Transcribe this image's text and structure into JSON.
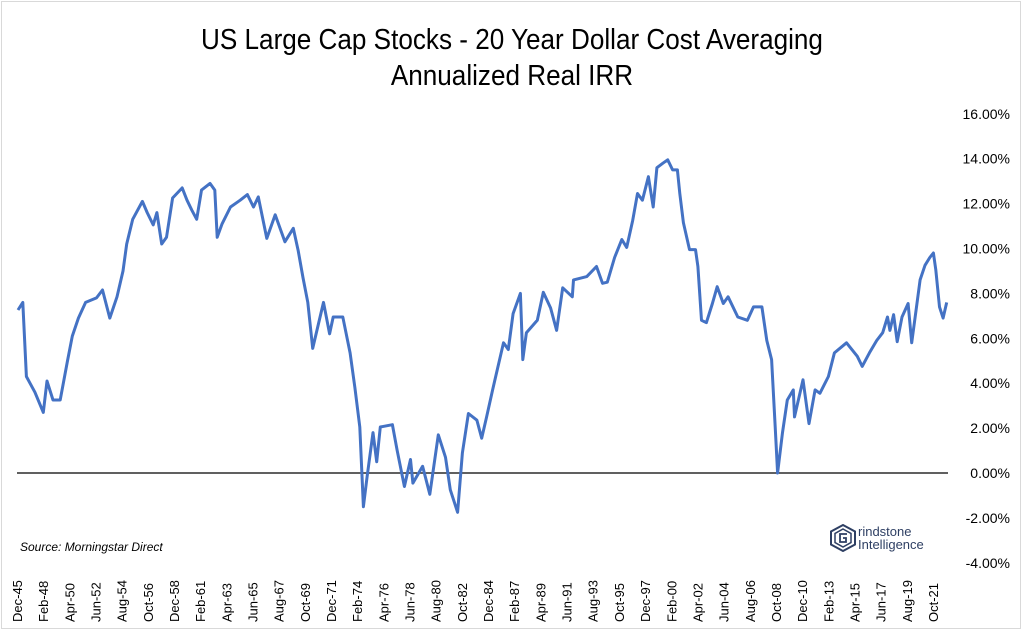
{
  "chart_data": {
    "type": "line",
    "title": "US Large Cap Stocks - 20 Year Dollar Cost Averaging",
    "subtitle": "Annualized Real IRR",
    "xlabel": "",
    "ylabel": "",
    "ylim": [
      -4,
      16
    ],
    "yticks": [
      16,
      14,
      12,
      10,
      8,
      6,
      4,
      2,
      0,
      -2,
      -4
    ],
    "ytick_labels": [
      "16.00%",
      "14.00%",
      "12.00%",
      "10.00%",
      "8.00%",
      "6.00%",
      "4.00%",
      "2.00%",
      "0.00%",
      "-2.00%",
      "-4.00%"
    ],
    "xtick_labels": [
      "Dec-45",
      "Feb-48",
      "Apr-50",
      "Jun-52",
      "Aug-54",
      "Oct-56",
      "Dec-58",
      "Feb-61",
      "Apr-63",
      "Jun-65",
      "Aug-67",
      "Oct-69",
      "Dec-71",
      "Feb-74",
      "Apr-76",
      "Jun-78",
      "Aug-80",
      "Oct-82",
      "Dec-84",
      "Feb-87",
      "Apr-89",
      "Jun-91",
      "Aug-93",
      "Oct-95",
      "Dec-97",
      "Feb-00",
      "Apr-02",
      "Jun-04",
      "Aug-06",
      "Oct-08",
      "Dec-10",
      "Feb-13",
      "Apr-15",
      "Jun-17",
      "Aug-19",
      "Oct-21"
    ],
    "xlim": [
      1945.92,
      2022.9
    ],
    "grid": false,
    "zero_line": true,
    "series": [
      {
        "name": "Annualized Real IRR",
        "color": "#4472c4",
        "x": [
          1946.0,
          1946.4,
          1946.7,
          1947.0,
          1947.4,
          1948.1,
          1948.4,
          1948.9,
          1949.5,
          1950.1,
          1950.5,
          1951.0,
          1951.6,
          1952.5,
          1953.0,
          1953.6,
          1954.2,
          1954.7,
          1955.0,
          1955.5,
          1956.3,
          1956.7,
          1957.2,
          1957.5,
          1957.9,
          1958.3,
          1958.8,
          1959.6,
          1960.0,
          1960.4,
          1960.8,
          1961.2,
          1961.9,
          1962.3,
          1962.5,
          1962.9,
          1963.6,
          1964.4,
          1965.0,
          1965.5,
          1965.9,
          1966.6,
          1967.3,
          1968.1,
          1968.8,
          1969.2,
          1969.6,
          1970.0,
          1970.4,
          1971.3,
          1971.8,
          1972.1,
          1972.9,
          1973.5,
          1973.9,
          1974.3,
          1974.6,
          1974.9,
          1975.4,
          1975.7,
          1976.0,
          1977.0,
          1977.4,
          1978.0,
          1978.5,
          1978.7,
          1979.5,
          1980.1,
          1980.8,
          1981.4,
          1981.8,
          1982.4,
          1982.8,
          1983.3,
          1984.0,
          1984.4,
          1984.8,
          1985.3,
          1986.2,
          1986.6,
          1987.0,
          1987.6,
          1987.8,
          1988.1,
          1989.0,
          1989.5,
          1990.1,
          1990.6,
          1991.1,
          1991.9,
          1992.0,
          1993.1,
          1993.9,
          1994.4,
          1994.8,
          1995.4,
          1996.0,
          1996.4,
          1996.9,
          1997.3,
          1997.7,
          1998.2,
          1998.6,
          1998.9,
          1999.4,
          1999.8,
          2000.2,
          2000.6,
          2000.8,
          2001.1,
          2001.6,
          2002.1,
          2002.3,
          2002.6,
          2003.0,
          2003.5,
          2003.9,
          2004.4,
          2004.8,
          2005.6,
          2006.4,
          2006.9,
          2007.6,
          2008.0,
          2008.4,
          2008.7,
          2008.9,
          2009.3,
          2009.7,
          2010.2,
          2010.3,
          2011.0,
          2011.5,
          2012.0,
          2012.4,
          2013.1,
          2013.6,
          2014.6,
          2015.5,
          2015.9,
          2016.5,
          2017.1,
          2017.6,
          2018.0,
          2018.2,
          2018.5,
          2018.8,
          2019.2,
          2019.7,
          2020.0,
          2020.4,
          2020.7,
          2021.1,
          2021.5,
          2021.8,
          2022.0,
          2022.3,
          2022.6,
          2022.9
        ],
        "y": [
          7.26,
          7.6,
          4.3,
          4.0,
          3.6,
          2.7,
          4.1,
          3.25,
          3.25,
          5.0,
          6.1,
          6.9,
          7.6,
          7.8,
          8.15,
          6.9,
          7.85,
          9.0,
          10.2,
          11.3,
          12.1,
          11.6,
          11.05,
          11.6,
          10.2,
          10.5,
          12.25,
          12.7,
          12.15,
          11.7,
          11.3,
          12.6,
          12.9,
          12.6,
          10.5,
          11.1,
          11.85,
          12.15,
          12.4,
          11.85,
          12.3,
          10.45,
          11.5,
          10.3,
          10.9,
          9.9,
          8.7,
          7.6,
          5.55,
          7.6,
          6.2,
          6.95,
          6.95,
          5.35,
          3.8,
          2.05,
          -1.5,
          -0.2,
          1.8,
          0.5,
          2.05,
          2.15,
          1.0,
          -0.6,
          0.6,
          -0.45,
          0.3,
          -0.95,
          1.7,
          0.7,
          -0.75,
          -1.75,
          0.9,
          2.65,
          2.35,
          1.55,
          2.5,
          3.7,
          5.8,
          5.5,
          7.1,
          8.0,
          5.05,
          6.25,
          6.8,
          8.05,
          7.35,
          6.35,
          8.25,
          7.85,
          8.6,
          8.75,
          9.2,
          8.45,
          8.5,
          9.6,
          10.4,
          10.05,
          11.25,
          12.45,
          12.15,
          13.2,
          11.85,
          13.6,
          13.8,
          13.95,
          13.5,
          13.5,
          12.45,
          11.15,
          9.95,
          9.95,
          9.2,
          6.8,
          6.7,
          7.55,
          8.3,
          7.55,
          7.85,
          6.95,
          6.8,
          7.4,
          7.4,
          5.9,
          5.05,
          2.05,
          0.0,
          1.8,
          3.25,
          3.7,
          2.5,
          4.15,
          2.2,
          3.7,
          3.55,
          4.3,
          5.35,
          5.8,
          5.2,
          4.75,
          5.35,
          5.9,
          6.25,
          6.95,
          6.35,
          7.05,
          5.85,
          6.95,
          7.55,
          5.8,
          7.4,
          8.6,
          9.25,
          9.6,
          9.8,
          9.05,
          7.4,
          6.9,
          7.6
        ]
      }
    ],
    "source": "Source: Morningstar Direct",
    "logo_text": [
      "Grindstone",
      "Intelligence"
    ]
  }
}
